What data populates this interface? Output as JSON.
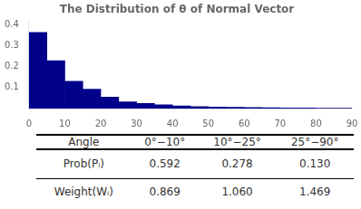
{
  "chart_data": [
    {
      "type": "histogram",
      "title": "The Distribution of θ of Normal Vector",
      "bins": [
        0,
        5,
        10,
        15,
        20,
        25,
        30,
        35,
        40,
        45,
        50,
        55,
        60,
        65,
        70,
        75,
        80,
        85,
        90
      ],
      "values": [
        0.362,
        0.228,
        0.13,
        0.092,
        0.055,
        0.032,
        0.024,
        0.018,
        0.013,
        0.009,
        0.007,
        0.006,
        0.005,
        0.004,
        0.003,
        0.003,
        0.002,
        0.002
      ],
      "color": "#00008B",
      "xlim": [
        0,
        90
      ],
      "ylim": [
        0,
        0.42
      ],
      "xticks": [
        0,
        10,
        20,
        30,
        40,
        50,
        60,
        70,
        80,
        90
      ],
      "yticks": [
        0.1,
        0.2,
        0.3,
        0.4
      ],
      "grid": false
    },
    {
      "type": "table",
      "columns": [
        "Angle",
        "0°−10°",
        "10°−25°",
        "25°−90°"
      ],
      "rows": [
        [
          "Prob(Pᵢ)",
          "0.592",
          "0.278",
          "0.130"
        ],
        [
          "Weight(Wᵢ)",
          "0.869",
          "1.060",
          "1.469"
        ]
      ]
    }
  ]
}
